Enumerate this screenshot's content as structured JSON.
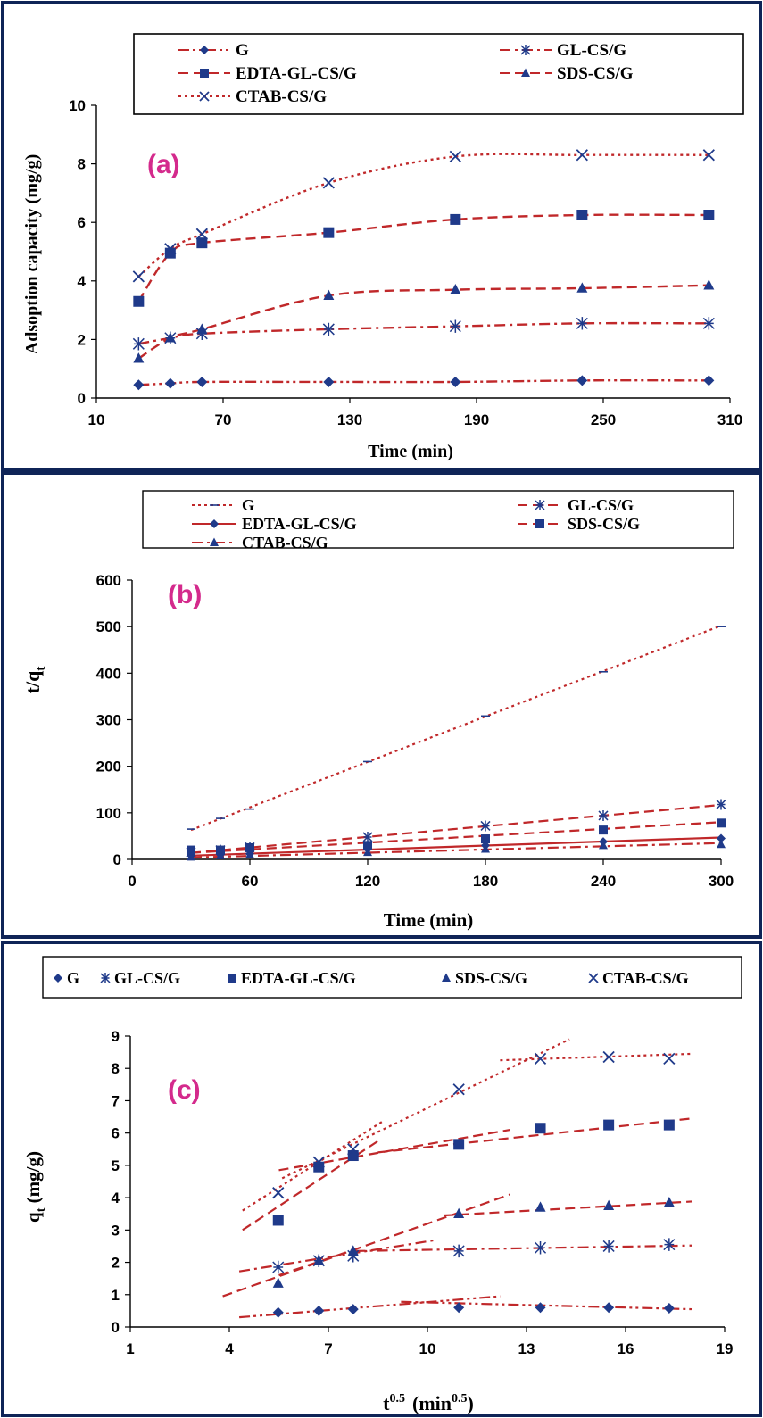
{
  "colors": {
    "frame": "#0f2457",
    "series": "#c0282a",
    "marker": "#1f3a8a",
    "panel_label": "#d42a8c",
    "axis": "#000000"
  },
  "chart_data": [
    {
      "panel": "(a)",
      "type": "line",
      "xlabel": "Time (min)",
      "ylabel": "Adsoption capacity (mg/g)",
      "xlim": [
        10,
        310
      ],
      "ylim": [
        0,
        10
      ],
      "xticks": [
        10,
        70,
        130,
        190,
        250,
        310
      ],
      "yticks": [
        0,
        2,
        4,
        6,
        8,
        10
      ],
      "x": [
        30,
        45,
        60,
        120,
        180,
        240,
        300
      ],
      "series": [
        {
          "name": "G",
          "marker": "diamond",
          "line": "dashdotdot",
          "values": [
            0.45,
            0.5,
            0.55,
            0.55,
            0.55,
            0.6,
            0.6
          ]
        },
        {
          "name": "GL-CS/G",
          "marker": "asterisk",
          "line": "dashdot",
          "values": [
            1.85,
            2.05,
            2.2,
            2.35,
            2.45,
            2.55,
            2.55
          ]
        },
        {
          "name": "EDTA-GL-CS/G",
          "marker": "square",
          "line": "dash",
          "values": [
            3.3,
            4.95,
            5.3,
            5.65,
            6.1,
            6.25,
            6.25
          ]
        },
        {
          "name": "SDS-CS/G",
          "marker": "triangle",
          "line": "dash",
          "values": [
            1.35,
            2.05,
            2.35,
            3.5,
            3.7,
            3.75,
            3.85
          ]
        },
        {
          "name": "CTAB-CS/G",
          "marker": "x",
          "line": "dot",
          "values": [
            4.15,
            5.1,
            5.6,
            7.35,
            8.25,
            8.3,
            8.3
          ]
        }
      ]
    },
    {
      "panel": "(b)",
      "type": "scatter",
      "xlabel": "Time (min)",
      "ylabel": "t/qt",
      "xlim": [
        0,
        300
      ],
      "ylim": [
        0,
        600
      ],
      "xticks": [
        0,
        60,
        120,
        180,
        240,
        300
      ],
      "yticks": [
        0,
        100,
        200,
        300,
        400,
        500,
        600
      ],
      "x": [
        30,
        45,
        60,
        120,
        180,
        240,
        300
      ],
      "series": [
        {
          "name": "G",
          "marker": "dash",
          "line": "dot",
          "values": [
            65,
            88,
            108,
            210,
            308,
            403,
            500
          ],
          "fit": [
            [
              30,
              63
            ],
            [
              300,
              502
            ]
          ]
        },
        {
          "name": "GL-CS/G",
          "marker": "asterisk",
          "line": "dash",
          "values": [
            15,
            20,
            26,
            48,
            72,
            94,
            118
          ],
          "fit": [
            [
              30,
              14
            ],
            [
              300,
              117
            ]
          ]
        },
        {
          "name": "EDTA-GL-CS/G",
          "marker": "diamond",
          "line": "solid",
          "values": [
            9,
            10,
            12,
            22,
            30,
            38,
            45
          ],
          "fit": [
            [
              30,
              8
            ],
            [
              300,
              47
            ]
          ]
        },
        {
          "name": "SDS-CS/G",
          "marker": "square",
          "line": "dash",
          "values": [
            20,
            20,
            25,
            30,
            44,
            63,
            78
          ],
          "fit": [
            [
              30,
              14
            ],
            [
              300,
              80
            ]
          ]
        },
        {
          "name": "CTAB-CS/G",
          "marker": "triangle",
          "line": "dashdot",
          "values": [
            5,
            8,
            10,
            15,
            22,
            30,
            32
          ],
          "fit": [
            [
              30,
              4
            ],
            [
              300,
              35
            ]
          ]
        }
      ]
    },
    {
      "panel": "(c)",
      "type": "scatter",
      "xlabel_base": "t",
      "xlabel_sup": "0.5",
      "xlabel_unit_base": "(min",
      "xlabel_unit_sup": "0.5",
      "xlabel_unit_end": ")",
      "ylabel_base": "q",
      "ylabel_sub": "t",
      "ylabel_unit": " (mg/g)",
      "xlim": [
        1,
        19
      ],
      "ylim": [
        0,
        9
      ],
      "xticks": [
        1,
        4,
        7,
        10,
        13,
        16,
        19
      ],
      "yticks": [
        0,
        1,
        2,
        3,
        4,
        5,
        6,
        7,
        8,
        9
      ],
      "x": [
        5.48,
        6.71,
        7.75,
        10.95,
        13.42,
        15.49,
        17.32
      ],
      "series": [
        {
          "name": "G",
          "marker": "diamond",
          "line": "dashdotdot",
          "values": [
            0.45,
            0.5,
            0.55,
            0.6,
            0.6,
            0.6,
            0.58
          ],
          "fits": [
            [
              [
                4.3,
                0.3
              ],
              [
                12.2,
                0.95
              ]
            ],
            [
              [
                9.2,
                0.78
              ],
              [
                18,
                0.55
              ]
            ]
          ]
        },
        {
          "name": "GL-CS/G",
          "marker": "asterisk",
          "line": "dashdot",
          "values": [
            1.85,
            2.05,
            2.2,
            2.35,
            2.45,
            2.5,
            2.55
          ],
          "fits": [
            [
              [
                4.3,
                1.72
              ],
              [
                10.2,
                2.68
              ]
            ],
            [
              [
                7.8,
                2.35
              ],
              [
                18,
                2.52
              ]
            ]
          ]
        },
        {
          "name": "EDTA-GL-CS/G",
          "marker": "square",
          "line": "dash",
          "values": [
            3.3,
            4.95,
            5.3,
            5.65,
            6.15,
            6.25,
            6.25
          ],
          "fits": [
            [
              [
                4.4,
                3.0
              ],
              [
                8.5,
                5.75
              ]
            ],
            [
              [
                5.5,
                4.85
              ],
              [
                12.5,
                6.1
              ]
            ],
            [
              [
                8.5,
                5.4
              ],
              [
                18,
                6.45
              ]
            ]
          ]
        },
        {
          "name": "SDS-CS/G",
          "marker": "triangle",
          "line": "dash",
          "values": [
            1.35,
            2.05,
            2.35,
            3.5,
            3.7,
            3.75,
            3.85
          ],
          "fits": [
            [
              [
                3.8,
                0.95
              ],
              [
                12.5,
                4.1
              ]
            ],
            [
              [
                10.5,
                3.45
              ],
              [
                18,
                3.88
              ]
            ],
            [
              [
                5.5,
                1.6
              ],
              [
                7.8,
                2.4
              ]
            ]
          ]
        },
        {
          "name": "CTAB-CS/G",
          "marker": "x",
          "line": "dot",
          "values": [
            4.15,
            5.1,
            5.5,
            7.35,
            8.3,
            8.35,
            8.3
          ],
          "fits": [
            [
              [
                4.4,
                3.6
              ],
              [
                8.7,
                6.4
              ]
            ],
            [
              [
                5.6,
                4.6
              ],
              [
                14.3,
                8.9
              ]
            ],
            [
              [
                12.2,
                8.25
              ],
              [
                18,
                8.45
              ]
            ]
          ]
        }
      ]
    }
  ]
}
